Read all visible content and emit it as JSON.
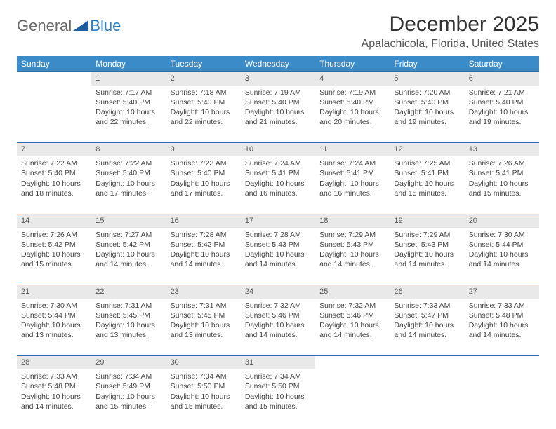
{
  "logo": {
    "text1": "General",
    "text2": "Blue",
    "accent": "#2f7fbf",
    "icon_color": "#1f5f9f"
  },
  "title": "December 2025",
  "location": "Apalachicola, Florida, United States",
  "colors": {
    "header_bg": "#3b8bc9",
    "header_text": "#ffffff",
    "daynum_bg": "#e9e9e9",
    "rule": "#2d6ea8",
    "body_text": "#444444"
  },
  "day_headers": [
    "Sunday",
    "Monday",
    "Tuesday",
    "Wednesday",
    "Thursday",
    "Friday",
    "Saturday"
  ],
  "weeks": [
    {
      "nums": [
        "",
        "1",
        "2",
        "3",
        "4",
        "5",
        "6"
      ],
      "cells": [
        null,
        {
          "sunrise": "7:17 AM",
          "sunset": "5:40 PM",
          "daylight": "10 hours and 22 minutes."
        },
        {
          "sunrise": "7:18 AM",
          "sunset": "5:40 PM",
          "daylight": "10 hours and 22 minutes."
        },
        {
          "sunrise": "7:19 AM",
          "sunset": "5:40 PM",
          "daylight": "10 hours and 21 minutes."
        },
        {
          "sunrise": "7:19 AM",
          "sunset": "5:40 PM",
          "daylight": "10 hours and 20 minutes."
        },
        {
          "sunrise": "7:20 AM",
          "sunset": "5:40 PM",
          "daylight": "10 hours and 19 minutes."
        },
        {
          "sunrise": "7:21 AM",
          "sunset": "5:40 PM",
          "daylight": "10 hours and 19 minutes."
        }
      ]
    },
    {
      "nums": [
        "7",
        "8",
        "9",
        "10",
        "11",
        "12",
        "13"
      ],
      "cells": [
        {
          "sunrise": "7:22 AM",
          "sunset": "5:40 PM",
          "daylight": "10 hours and 18 minutes."
        },
        {
          "sunrise": "7:22 AM",
          "sunset": "5:40 PM",
          "daylight": "10 hours and 17 minutes."
        },
        {
          "sunrise": "7:23 AM",
          "sunset": "5:40 PM",
          "daylight": "10 hours and 17 minutes."
        },
        {
          "sunrise": "7:24 AM",
          "sunset": "5:41 PM",
          "daylight": "10 hours and 16 minutes."
        },
        {
          "sunrise": "7:24 AM",
          "sunset": "5:41 PM",
          "daylight": "10 hours and 16 minutes."
        },
        {
          "sunrise": "7:25 AM",
          "sunset": "5:41 PM",
          "daylight": "10 hours and 15 minutes."
        },
        {
          "sunrise": "7:26 AM",
          "sunset": "5:41 PM",
          "daylight": "10 hours and 15 minutes."
        }
      ]
    },
    {
      "nums": [
        "14",
        "15",
        "16",
        "17",
        "18",
        "19",
        "20"
      ],
      "cells": [
        {
          "sunrise": "7:26 AM",
          "sunset": "5:42 PM",
          "daylight": "10 hours and 15 minutes."
        },
        {
          "sunrise": "7:27 AM",
          "sunset": "5:42 PM",
          "daylight": "10 hours and 14 minutes."
        },
        {
          "sunrise": "7:28 AM",
          "sunset": "5:42 PM",
          "daylight": "10 hours and 14 minutes."
        },
        {
          "sunrise": "7:28 AM",
          "sunset": "5:43 PM",
          "daylight": "10 hours and 14 minutes."
        },
        {
          "sunrise": "7:29 AM",
          "sunset": "5:43 PM",
          "daylight": "10 hours and 14 minutes."
        },
        {
          "sunrise": "7:29 AM",
          "sunset": "5:43 PM",
          "daylight": "10 hours and 14 minutes."
        },
        {
          "sunrise": "7:30 AM",
          "sunset": "5:44 PM",
          "daylight": "10 hours and 14 minutes."
        }
      ]
    },
    {
      "nums": [
        "21",
        "22",
        "23",
        "24",
        "25",
        "26",
        "27"
      ],
      "cells": [
        {
          "sunrise": "7:30 AM",
          "sunset": "5:44 PM",
          "daylight": "10 hours and 13 minutes."
        },
        {
          "sunrise": "7:31 AM",
          "sunset": "5:45 PM",
          "daylight": "10 hours and 13 minutes."
        },
        {
          "sunrise": "7:31 AM",
          "sunset": "5:45 PM",
          "daylight": "10 hours and 13 minutes."
        },
        {
          "sunrise": "7:32 AM",
          "sunset": "5:46 PM",
          "daylight": "10 hours and 14 minutes."
        },
        {
          "sunrise": "7:32 AM",
          "sunset": "5:46 PM",
          "daylight": "10 hours and 14 minutes."
        },
        {
          "sunrise": "7:33 AM",
          "sunset": "5:47 PM",
          "daylight": "10 hours and 14 minutes."
        },
        {
          "sunrise": "7:33 AM",
          "sunset": "5:48 PM",
          "daylight": "10 hours and 14 minutes."
        }
      ]
    },
    {
      "nums": [
        "28",
        "29",
        "30",
        "31",
        "",
        "",
        ""
      ],
      "cells": [
        {
          "sunrise": "7:33 AM",
          "sunset": "5:48 PM",
          "daylight": "10 hours and 14 minutes."
        },
        {
          "sunrise": "7:34 AM",
          "sunset": "5:49 PM",
          "daylight": "10 hours and 15 minutes."
        },
        {
          "sunrise": "7:34 AM",
          "sunset": "5:50 PM",
          "daylight": "10 hours and 15 minutes."
        },
        {
          "sunrise": "7:34 AM",
          "sunset": "5:50 PM",
          "daylight": "10 hours and 15 minutes."
        },
        null,
        null,
        null
      ]
    }
  ],
  "labels": {
    "sunrise": "Sunrise: ",
    "sunset": "Sunset: ",
    "daylight": "Daylight: "
  }
}
